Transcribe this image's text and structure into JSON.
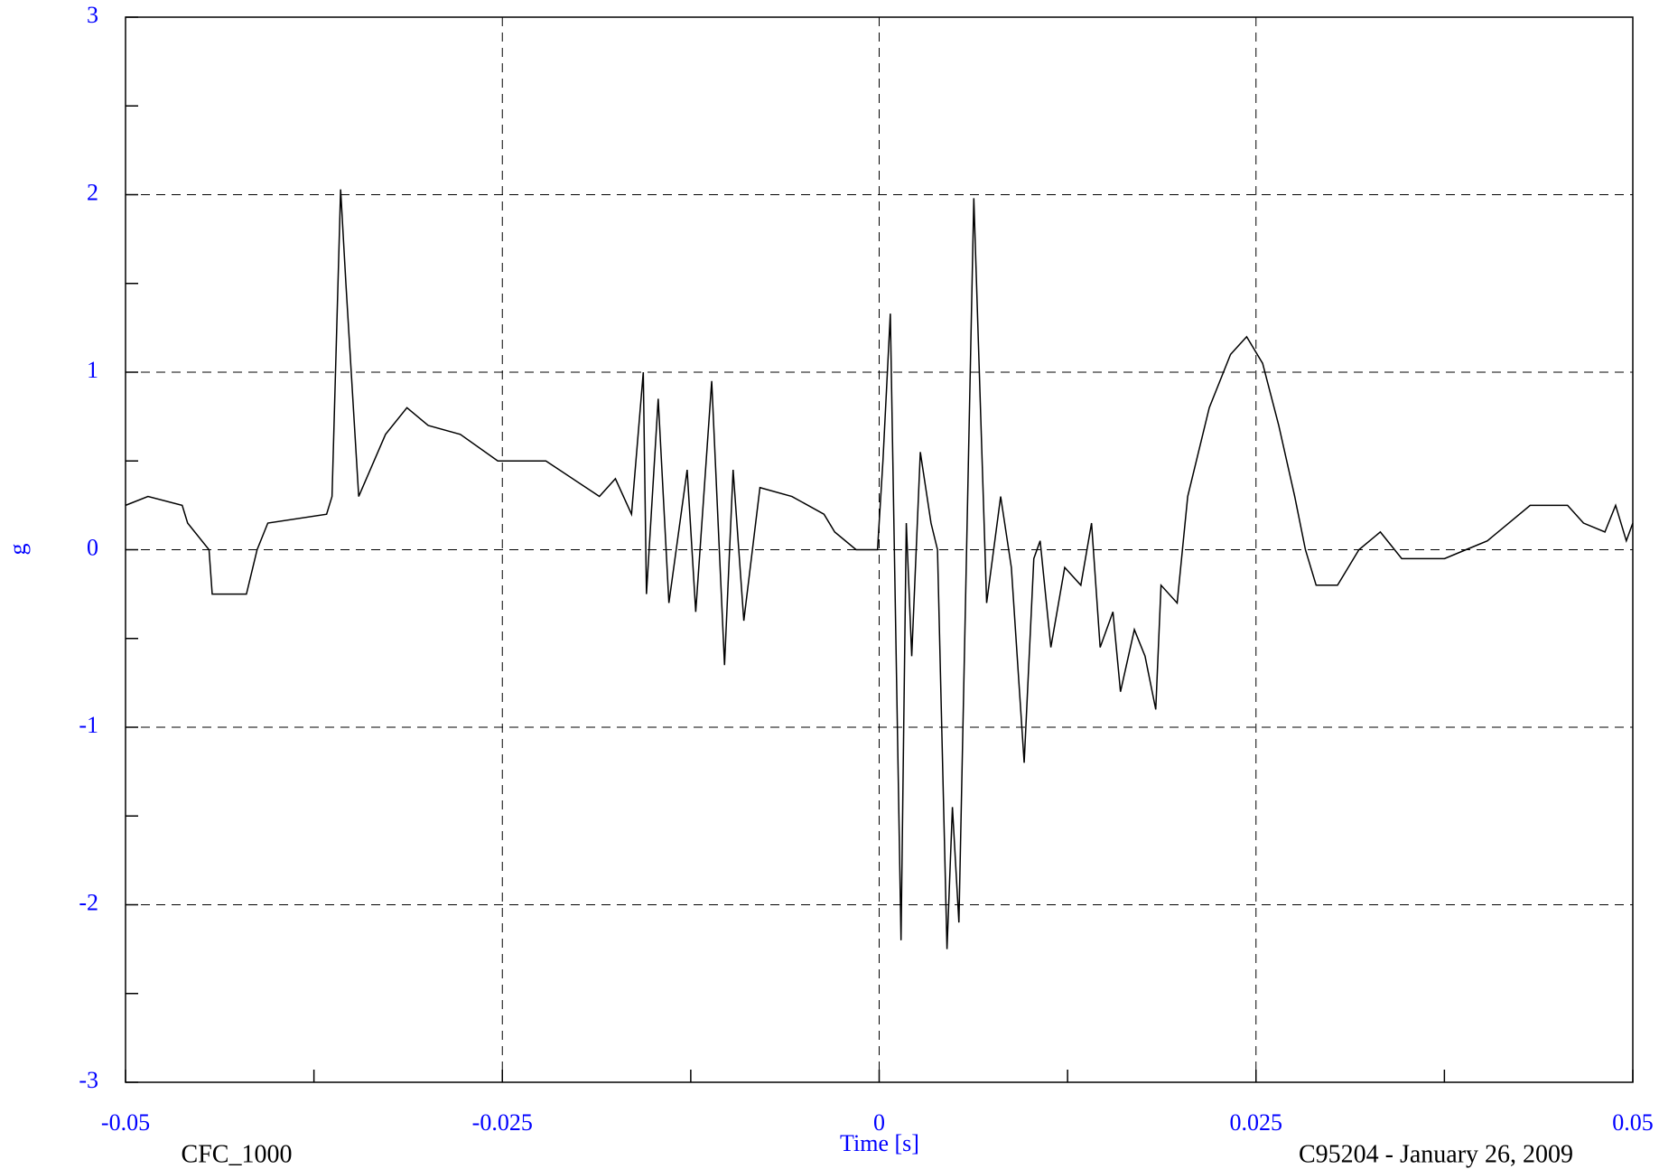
{
  "chart_data": {
    "type": "line",
    "x_label": "Time [s]",
    "y_label": "g",
    "footer_left": "CFC_1000",
    "footer_right": "C95204 - January 26, 2009",
    "xlim": [
      -0.05,
      0.05
    ],
    "xticks": [
      -0.05,
      -0.025,
      0,
      0.025,
      0.05
    ],
    "ylim": [
      -3,
      3
    ],
    "yticks": [
      -3,
      -2,
      -1,
      0,
      1,
      2,
      3
    ],
    "grid": true,
    "tick_label_color": "#0000ff",
    "series": [
      {
        "name": "CFC_1000",
        "color": "#000000",
        "x": [
          -0.05,
          -0.04851,
          -0.04624,
          -0.04588,
          -0.04446,
          -0.04425,
          -0.04198,
          -0.04127,
          -0.04056,
          -0.03666,
          -0.0363,
          -0.03573,
          -0.03538,
          -0.03453,
          -0.03275,
          -0.03133,
          -0.02992,
          -0.02779,
          -0.0253,
          -0.02211,
          -0.01856,
          -0.0175,
          -0.01643,
          -0.01565,
          -0.01544,
          -0.01466,
          -0.01395,
          -0.01274,
          -0.01217,
          -0.01111,
          -0.01026,
          -0.00969,
          -0.00898,
          -0.00791,
          -0.00579,
          -0.00366,
          -0.00295,
          -0.00153,
          -0.00011,
          0.00025,
          0.00074,
          0.00145,
          0.0018,
          0.00216,
          0.00273,
          0.00344,
          0.00387,
          0.0045,
          0.00486,
          0.00529,
          0.00628,
          0.00713,
          0.00806,
          0.00877,
          0.00962,
          0.01026,
          0.01068,
          0.01139,
          0.01231,
          0.01338,
          0.01409,
          0.01466,
          0.01551,
          0.01601,
          0.01693,
          0.01764,
          0.01835,
          0.0187,
          0.01977,
          0.02047,
          0.0219,
          0.02331,
          0.02438,
          0.02544,
          0.02651,
          0.02757,
          0.02828,
          0.02899,
          0.03041,
          0.03183,
          0.03325,
          0.03467,
          0.03609,
          0.03751,
          0.03893,
          0.04035,
          0.04177,
          0.04319,
          0.04567,
          0.04673,
          0.04815,
          0.04886,
          0.04957,
          0.05
        ],
        "values": [
          0.25,
          0.3,
          0.25,
          0.15,
          0.0,
          -0.25,
          -0.25,
          0.0,
          0.15,
          0.2,
          0.3,
          2.03,
          1.5,
          0.3,
          0.65,
          0.8,
          0.7,
          0.65,
          0.5,
          0.5,
          0.3,
          0.4,
          0.2,
          1.0,
          -0.25,
          0.85,
          -0.3,
          0.45,
          -0.35,
          0.95,
          -0.65,
          0.45,
          -0.4,
          0.35,
          0.3,
          0.2,
          0.1,
          0.0,
          0.0,
          0.5,
          1.33,
          -2.2,
          0.15,
          -0.6,
          0.55,
          0.15,
          0.0,
          -2.25,
          -1.45,
          -2.1,
          1.98,
          -0.3,
          0.3,
          -0.1,
          -1.2,
          -0.05,
          0.05,
          -0.55,
          -0.1,
          -0.2,
          0.15,
          -0.55,
          -0.35,
          -0.8,
          -0.45,
          -0.6,
          -0.9,
          -0.2,
          -0.3,
          0.3,
          0.8,
          1.1,
          1.2,
          1.05,
          0.7,
          0.3,
          0.0,
          -0.2,
          -0.2,
          0.0,
          0.1,
          -0.05,
          -0.05,
          -0.05,
          0.0,
          0.05,
          0.15,
          0.25,
          0.25,
          0.15,
          0.1,
          0.25,
          0.05,
          0.15
        ]
      }
    ]
  }
}
